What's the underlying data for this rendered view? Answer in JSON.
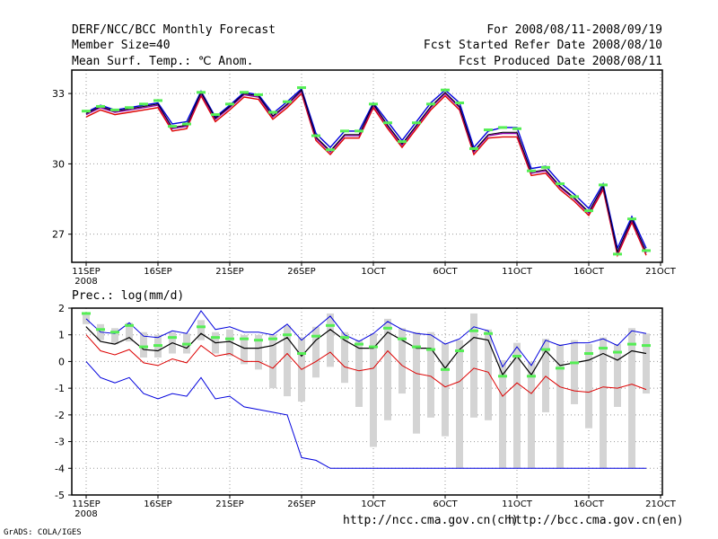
{
  "header": {
    "title": "DERF/NCC/BCC Monthly Forecast",
    "member": "Member Size=40",
    "variable": "Mean Surf. Temp.: ℃ Anom.",
    "period": "For 2008/08/11-2008/09/19",
    "start": "Fcst Started Refer Date 2008/08/10",
    "produced": "Fcst Produced Date 2008/08/11"
  },
  "footer": {
    "url_ch": "http://ncc.cma.gov.cn(ch)",
    "url_en": "http://bcc.cma.gov.cn(en)",
    "credit": "GrADS: COLA/IGES"
  },
  "colors": {
    "ens": "#000000",
    "upper": "#0000dd",
    "lower": "#dd0000",
    "member": "#8800aa",
    "obs": "#55ee55",
    "bar": "#d4d4d4"
  },
  "chart_data": [
    {
      "type": "line",
      "title": "Mean Surf. Temp.: ℃ Anom.",
      "xlabel": "",
      "ylabel": "",
      "ylim": [
        25.8,
        34.0
      ],
      "yticks": [
        27,
        30,
        33
      ],
      "xtick_labels": [
        "11SEP",
        "16SEP",
        "21SEP",
        "26SEP",
        "1OCT",
        "6OCT",
        "11OCT",
        "16OCT",
        "21OCT"
      ],
      "xtick_days": [
        0,
        5,
        10,
        15,
        20,
        25,
        30,
        35,
        40
      ],
      "year_label": "2008",
      "x_days": [
        0,
        1,
        2,
        3,
        4,
        5,
        6,
        7,
        8,
        9,
        10,
        11,
        12,
        13,
        14,
        15,
        16,
        17,
        18,
        19,
        20,
        21,
        22,
        23,
        24,
        25,
        26,
        27,
        28,
        29,
        30,
        31,
        32,
        33,
        34,
        35,
        36,
        37,
        38,
        39
      ],
      "series": [
        {
          "name": "ensemble",
          "values": [
            32.1,
            32.4,
            32.2,
            32.3,
            32.4,
            32.5,
            31.5,
            31.6,
            33.0,
            31.9,
            32.4,
            32.95,
            32.85,
            32.0,
            32.5,
            33.1,
            31.1,
            30.5,
            31.2,
            31.2,
            32.5,
            31.6,
            30.8,
            31.6,
            32.4,
            33.0,
            32.4,
            30.5,
            31.2,
            31.3,
            31.3,
            29.6,
            29.7,
            29.0,
            28.5,
            27.9,
            29.0,
            26.2,
            27.6,
            26.2
          ]
        },
        {
          "name": "upper",
          "values": [
            32.2,
            32.5,
            32.3,
            32.4,
            32.5,
            32.6,
            31.7,
            31.8,
            33.1,
            32.0,
            32.5,
            33.05,
            32.95,
            32.15,
            32.65,
            33.2,
            31.3,
            30.7,
            31.4,
            31.4,
            32.6,
            31.8,
            31.0,
            31.8,
            32.6,
            33.15,
            32.6,
            30.7,
            31.4,
            31.55,
            31.55,
            29.8,
            29.9,
            29.2,
            28.7,
            28.1,
            29.15,
            26.4,
            27.75,
            26.4
          ]
        },
        {
          "name": "lower",
          "values": [
            32.0,
            32.3,
            32.1,
            32.2,
            32.3,
            32.4,
            31.4,
            31.5,
            32.9,
            31.8,
            32.3,
            32.85,
            32.75,
            31.9,
            32.4,
            33.0,
            31.0,
            30.4,
            31.1,
            31.1,
            32.4,
            31.5,
            30.7,
            31.5,
            32.3,
            32.9,
            32.3,
            30.4,
            31.1,
            31.15,
            31.15,
            29.5,
            29.6,
            28.9,
            28.4,
            27.8,
            28.9,
            26.1,
            27.5,
            26.1
          ]
        },
        {
          "name": "observed",
          "values": [
            32.25,
            32.45,
            32.3,
            32.4,
            32.55,
            32.7,
            31.6,
            31.7,
            33.05,
            32.1,
            32.55,
            33.05,
            32.95,
            32.2,
            32.65,
            33.25,
            31.2,
            30.6,
            31.4,
            31.4,
            32.55,
            31.75,
            30.95,
            31.75,
            32.55,
            33.15,
            32.6,
            30.65,
            31.45,
            31.55,
            31.5,
            29.7,
            29.85,
            29.15,
            28.6,
            28.0,
            29.1,
            26.15,
            27.65,
            26.3
          ]
        }
      ]
    },
    {
      "type": "line",
      "title": "Prec.: log(mm/d)",
      "xlabel": "",
      "ylabel": "",
      "ylim": [
        -5,
        2
      ],
      "yticks": [
        -5,
        -4,
        -3,
        -2,
        -1,
        0,
        1,
        2
      ],
      "xtick_labels": [
        "11SEP",
        "16SEP",
        "21SEP",
        "26SEP",
        "1OCT",
        "6OCT",
        "11OCT",
        "16OCT",
        "21OCT"
      ],
      "xtick_days": [
        0,
        5,
        10,
        15,
        20,
        25,
        30,
        35,
        40
      ],
      "year_label": "2008",
      "x_days": [
        0,
        1,
        2,
        3,
        4,
        5,
        6,
        7,
        8,
        9,
        10,
        11,
        12,
        13,
        14,
        15,
        16,
        17,
        18,
        19,
        20,
        21,
        22,
        23,
        24,
        25,
        26,
        27,
        28,
        29,
        30,
        31,
        32,
        33,
        34,
        35,
        36,
        37,
        38,
        39
      ],
      "series": [
        {
          "name": "ensemble",
          "values": [
            1.3,
            0.75,
            0.65,
            0.9,
            0.45,
            0.4,
            0.7,
            0.5,
            1.05,
            0.7,
            0.75,
            0.5,
            0.5,
            0.6,
            0.9,
            0.2,
            0.8,
            1.2,
            0.8,
            0.5,
            0.5,
            1.1,
            0.8,
            0.5,
            0.5,
            -0.25,
            0.45,
            0.9,
            0.8,
            -0.5,
            0.2,
            -0.5,
            0.4,
            -0.15,
            -0.05,
            0.05,
            0.3,
            0.05,
            0.4,
            0.3
          ]
        },
        {
          "name": "upper",
          "values": [
            1.6,
            1.1,
            1.05,
            1.45,
            0.95,
            0.9,
            1.15,
            1.05,
            1.9,
            1.2,
            1.3,
            1.1,
            1.1,
            1.0,
            1.4,
            0.8,
            1.25,
            1.7,
            1.0,
            0.75,
            1.05,
            1.5,
            1.2,
            1.05,
            1.0,
            0.65,
            0.85,
            1.3,
            1.15,
            -0.2,
            0.55,
            -0.15,
            0.8,
            0.6,
            0.7,
            0.7,
            0.85,
            0.6,
            1.15,
            1.05
          ]
        },
        {
          "name": "lower",
          "values": [
            1.0,
            0.4,
            0.25,
            0.45,
            -0.05,
            -0.15,
            0.1,
            -0.05,
            0.6,
            0.2,
            0.3,
            0.0,
            0.0,
            -0.25,
            0.3,
            -0.3,
            0.0,
            0.35,
            -0.2,
            -0.35,
            -0.25,
            0.4,
            -0.15,
            -0.45,
            -0.55,
            -0.95,
            -0.75,
            -0.25,
            -0.4,
            -1.3,
            -0.8,
            -1.2,
            -0.55,
            -0.95,
            -1.1,
            -1.15,
            -0.95,
            -1.0,
            -0.85,
            -1.05
          ]
        },
        {
          "name": "min",
          "values": [
            0.0,
            -0.6,
            -0.8,
            -0.6,
            -1.2,
            -1.4,
            -1.2,
            -1.3,
            -0.6,
            -1.4,
            -1.3,
            -1.7,
            -1.8,
            -1.9,
            -2.0,
            -3.6,
            -3.7,
            -4.0,
            -4.0,
            -4.0,
            -4.0,
            -4.0,
            -4.0,
            -4.0,
            -4.0,
            -4.0,
            -4.0,
            -4.0,
            -4.0,
            -4.0,
            -4.0,
            -4.0,
            -4.0,
            -4.0,
            -4.0,
            -4.0,
            -4.0,
            -4.0,
            -4.0,
            -4.0
          ]
        },
        {
          "name": "bar_top",
          "values": [
            1.75,
            1.4,
            1.25,
            1.45,
            1.1,
            1.0,
            1.1,
            1.05,
            1.55,
            1.1,
            1.2,
            1.0,
            1.0,
            1.0,
            1.35,
            0.9,
            1.3,
            1.8,
            1.1,
            0.8,
            1.05,
            1.6,
            1.25,
            1.1,
            1.1,
            0.7,
            0.8,
            1.8,
            1.2,
            0.05,
            0.7,
            0.0,
            0.85,
            0.65,
            0.8,
            0.65,
            0.9,
            0.65,
            1.25,
            1.05
          ]
        },
        {
          "name": "bar_bottom",
          "values": [
            1.4,
            0.8,
            0.65,
            0.75,
            0.15,
            0.15,
            0.3,
            0.3,
            0.8,
            0.3,
            0.2,
            -0.1,
            -0.3,
            -1.0,
            -1.3,
            -1.5,
            -0.6,
            -0.2,
            -0.8,
            -1.7,
            -3.2,
            -2.2,
            -1.2,
            -2.7,
            -2.1,
            -2.8,
            -4.0,
            -2.1,
            -2.2,
            -4.0,
            -4.0,
            -4.0,
            -1.9,
            -4.0,
            -1.6,
            -2.5,
            -4.0,
            -1.7,
            -4.0,
            -1.2
          ]
        },
        {
          "name": "observed",
          "values": [
            1.8,
            1.2,
            1.1,
            1.35,
            0.55,
            0.6,
            0.9,
            0.65,
            1.3,
            0.9,
            0.85,
            0.85,
            0.8,
            0.85,
            1.0,
            0.3,
            0.95,
            1.35,
            0.9,
            0.65,
            0.55,
            1.25,
            0.85,
            0.55,
            0.45,
            -0.3,
            0.4,
            1.15,
            1.05,
            -0.55,
            0.2,
            -0.55,
            0.45,
            -0.25,
            -0.05,
            0.3,
            0.5,
            0.35,
            0.65,
            0.6
          ]
        }
      ]
    }
  ]
}
